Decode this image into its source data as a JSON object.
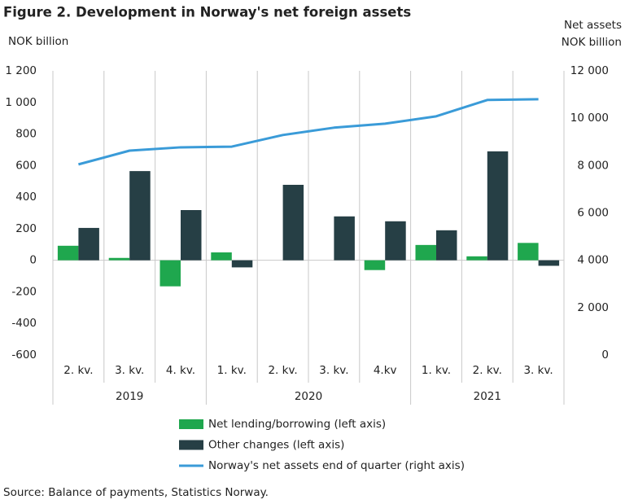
{
  "chart_data": {
    "type": "bar",
    "title": "Figure 2. Development in Norway's net foreign assets",
    "y_label": "NOK billion",
    "y2_label": [
      "Net assets",
      "NOK billion"
    ],
    "source": "Source: Balance of payments, Statistics Norway.",
    "categories": [
      "2. kv.",
      "3. kv.",
      "4. kv.",
      "1. kv.",
      "2. kv.",
      "3. kv.",
      "4.kv",
      "1. kv.",
      "2. kv.",
      "3. kv."
    ],
    "x_groups": [
      "2019",
      "2019",
      "2019",
      "2020",
      "2020",
      "2020",
      "2020",
      "2021",
      "2021",
      "2021"
    ],
    "series": [
      {
        "name": "Net lending/borrowing (left axis)",
        "type": "bar",
        "color": "#1fa74e",
        "values": [
          92,
          15,
          -165,
          50,
          0,
          0,
          -62,
          97,
          25,
          110
        ]
      },
      {
        "name": "Other changes (left axis)",
        "type": "bar",
        "color": "#263f45",
        "values": [
          205,
          565,
          318,
          -45,
          478,
          278,
          247,
          190,
          690,
          -35
        ]
      },
      {
        "name": "Norway's net assets end of quarter (right axis)",
        "type": "line",
        "axis": "y2",
        "color": "#3a9bd8",
        "values": [
          8050,
          8630,
          8770,
          8800,
          9290,
          9600,
          9770,
          10080,
          10770,
          10800
        ]
      }
    ],
    "ylim": [
      -600,
      1200
    ],
    "yticks": [
      -600,
      -400,
      -200,
      0,
      200,
      400,
      600,
      800,
      {
        "value": 1000,
        "label": "1 000"
      },
      {
        "value": 1200,
        "label": "1 200"
      }
    ],
    "y2lim": [
      0,
      12000
    ],
    "y2ticks": [
      0,
      {
        "value": 2000,
        "label": "2 000"
      },
      {
        "value": 4000,
        "label": "4 000"
      },
      {
        "value": 6000,
        "label": "6 000"
      },
      {
        "value": 8000,
        "label": "8 000"
      },
      {
        "value": 10000,
        "label": "10 000"
      },
      {
        "value": 12000,
        "label": "12 000"
      }
    ],
    "grid": false,
    "legend": "bottom"
  }
}
